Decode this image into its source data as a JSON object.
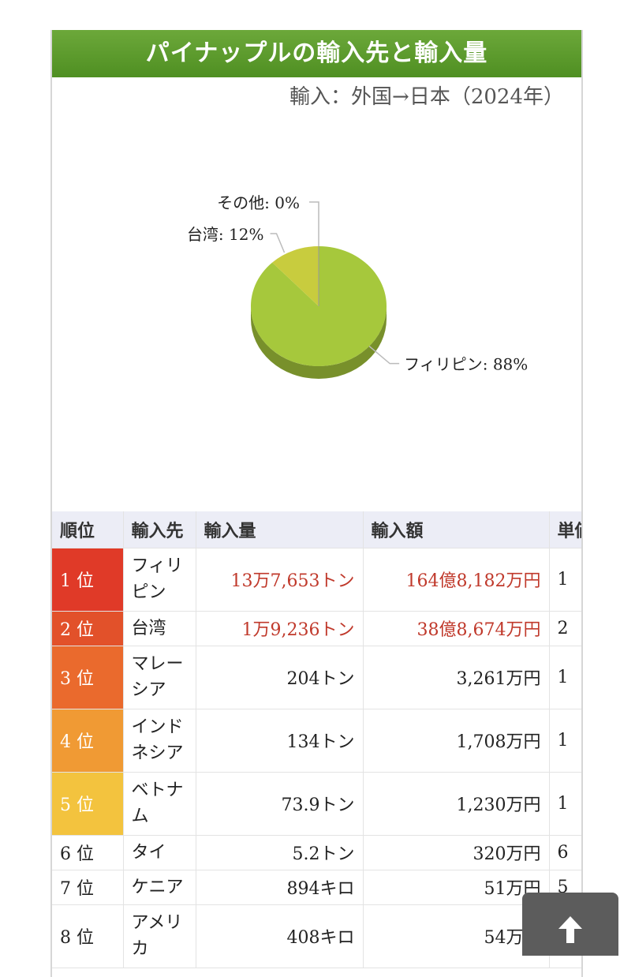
{
  "header": {
    "title": "パイナップルの輸入先と輸入量",
    "subtitle": "輸入：外国→日本（2024年）"
  },
  "chart_data": {
    "type": "pie",
    "slices": [
      {
        "label": "フィリピン: 88%",
        "value": 88,
        "color": "#a6c83c"
      },
      {
        "label": "台湾: 12%",
        "value": 12,
        "color": "#c8cc3e"
      },
      {
        "label": "その他: 0%",
        "value": 0,
        "color": "#999999"
      }
    ]
  },
  "table": {
    "headers": [
      "順位",
      "輸入先",
      "輸入量",
      "輸入額",
      "単価"
    ],
    "rows": [
      {
        "rank": "1 位",
        "country": "フィリピン",
        "volume": "13万7,653トン",
        "amount": "164億8,182万円",
        "unit": "1",
        "color": "#e03a28",
        "highlight": true,
        "tall": true
      },
      {
        "rank": "2 位",
        "country": "台湾",
        "volume": "1万9,236トン",
        "amount": "38億8,674万円",
        "unit": "2",
        "color": "#e2512a",
        "highlight": true,
        "tall": false
      },
      {
        "rank": "3 位",
        "country": "マレーシア",
        "volume": "204トン",
        "amount": "3,261万円",
        "unit": "1",
        "color": "#ea6a2d",
        "highlight": false,
        "tall": true
      },
      {
        "rank": "4 位",
        "country": "インドネシア",
        "volume": "134トン",
        "amount": "1,708万円",
        "unit": "1",
        "color": "#f09a34",
        "highlight": false,
        "tall": true
      },
      {
        "rank": "5 位",
        "country": "ベトナム",
        "volume": "73.9トン",
        "amount": "1,230万円",
        "unit": "1",
        "color": "#f3c33e",
        "highlight": false,
        "tall": true
      },
      {
        "rank": "6 位",
        "country": "タイ",
        "volume": "5.2トン",
        "amount": "320万円",
        "unit": "6",
        "color": "",
        "highlight": false,
        "tall": false
      },
      {
        "rank": "7 位",
        "country": "ケニア",
        "volume": "894キロ",
        "amount": "51万円",
        "unit": "5",
        "color": "",
        "highlight": false,
        "tall": false
      },
      {
        "rank": "8 位",
        "country": "アメリカ",
        "volume": "408キロ",
        "amount": "54万円",
        "unit": "",
        "color": "",
        "highlight": false,
        "tall": true
      }
    ]
  }
}
